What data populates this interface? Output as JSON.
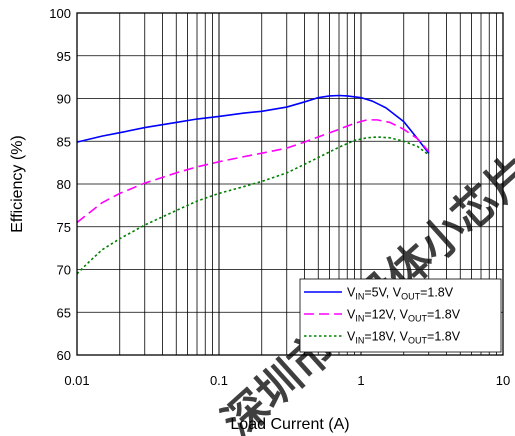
{
  "chart_data": {
    "type": "line",
    "xlabel": "Load Current (A)",
    "ylabel": "Efficiency (%)",
    "xscale": "log",
    "xlim": [
      0.01,
      10
    ],
    "ylim": [
      60,
      100
    ],
    "x_ticks": [
      "0.01",
      "0.1",
      "1",
      "10"
    ],
    "y_ticks": [
      "60",
      "65",
      "70",
      "75",
      "80",
      "85",
      "90",
      "95",
      "100"
    ],
    "grid": true,
    "legend_position": "bottom-right",
    "series": [
      {
        "name": "V_IN=5V, V_OUT=1.8V",
        "legend": {
          "a": "V",
          "a_sub": "IN",
          "b": "=5V, V",
          "b_sub": "OUT",
          "c": "=1.8V"
        },
        "color": "#0000ff",
        "style": "solid",
        "x": [
          0.01,
          0.015,
          0.02,
          0.03,
          0.05,
          0.07,
          0.1,
          0.15,
          0.2,
          0.3,
          0.4,
          0.5,
          0.6,
          0.7,
          0.8,
          1.0,
          1.2,
          1.5,
          2.0,
          2.5,
          3.0
        ],
        "y": [
          84.9,
          85.6,
          86.0,
          86.6,
          87.2,
          87.6,
          87.9,
          88.3,
          88.5,
          89.0,
          89.6,
          90.1,
          90.3,
          90.35,
          90.3,
          90.1,
          89.7,
          88.9,
          87.3,
          85.3,
          83.6
        ]
      },
      {
        "name": "V_IN=12V, V_OUT=1.8V",
        "legend": {
          "a": "V",
          "a_sub": "IN",
          "b": "=12V, V",
          "b_sub": "OUT",
          "c": "=1.8V"
        },
        "color": "#ff00ff",
        "style": "dashed",
        "x": [
          0.01,
          0.015,
          0.02,
          0.03,
          0.05,
          0.07,
          0.1,
          0.15,
          0.2,
          0.3,
          0.4,
          0.5,
          0.7,
          0.9,
          1.1,
          1.3,
          1.6,
          2.0,
          2.5,
          3.0
        ],
        "y": [
          75.5,
          77.8,
          78.9,
          80.1,
          81.3,
          82.0,
          82.6,
          83.2,
          83.6,
          84.2,
          84.9,
          85.5,
          86.4,
          87.1,
          87.5,
          87.5,
          87.2,
          86.4,
          85.3,
          83.8
        ]
      },
      {
        "name": "V_IN=18V, V_OUT=1.8V",
        "legend": {
          "a": "V",
          "a_sub": "IN",
          "b": "=18V, V",
          "b_sub": "OUT",
          "c": "=1.8V"
        },
        "color": "#008000",
        "style": "dotted",
        "x": [
          0.01,
          0.012,
          0.015,
          0.02,
          0.03,
          0.05,
          0.07,
          0.1,
          0.15,
          0.2,
          0.3,
          0.4,
          0.5,
          0.7,
          0.9,
          1.1,
          1.3,
          1.6,
          2.0,
          2.5,
          3.0
        ],
        "y": [
          69.5,
          70.8,
          72.3,
          73.6,
          75.2,
          76.9,
          78.0,
          78.9,
          79.7,
          80.3,
          81.3,
          82.3,
          83.1,
          84.3,
          85.1,
          85.4,
          85.5,
          85.4,
          85.0,
          84.4,
          83.4
        ]
      }
    ]
  },
  "watermark": {
    "text": "深圳市半导体小芯片",
    "color": "#ff0000"
  }
}
